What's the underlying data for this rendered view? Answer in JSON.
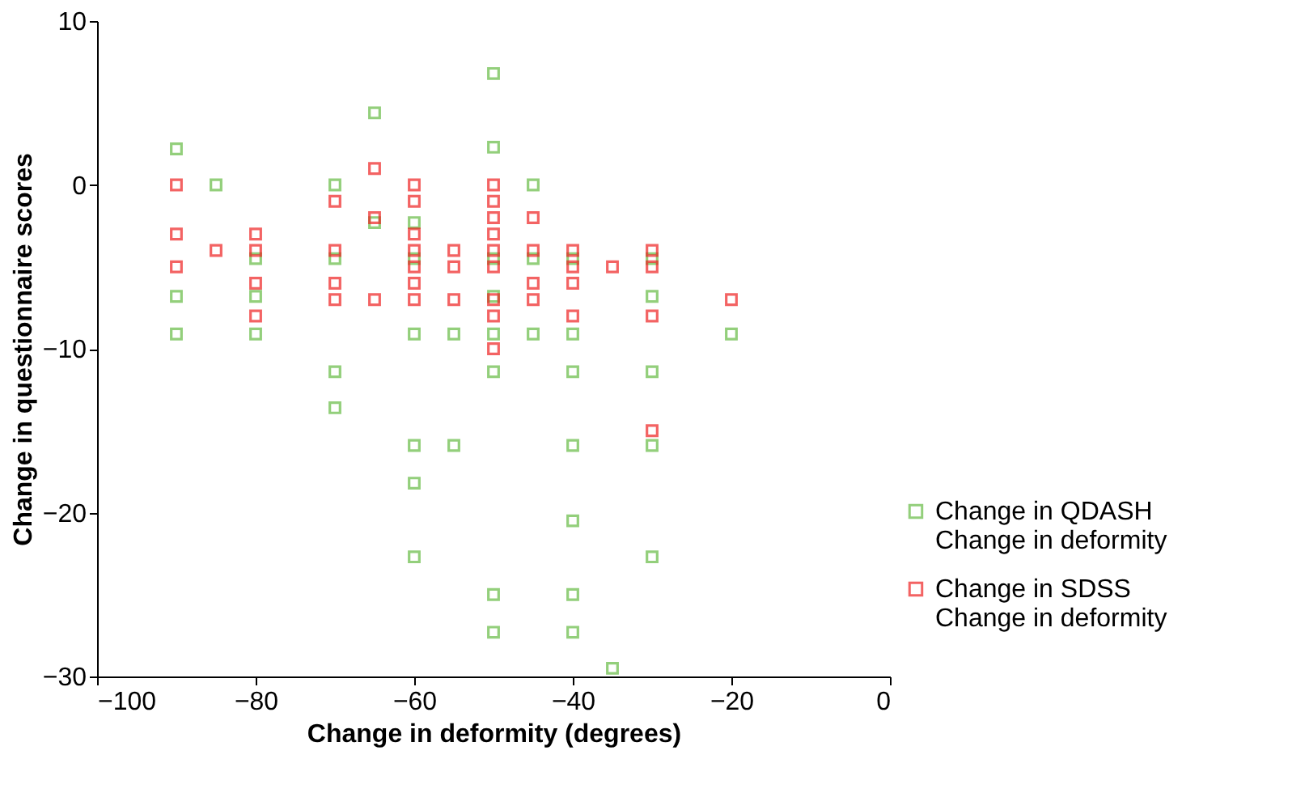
{
  "chart_data": {
    "type": "scatter",
    "xlabel": "Change in deformity (degrees)",
    "ylabel": "Change in questionnaire scores",
    "xlim": [
      -100,
      0
    ],
    "xticks": [
      -100,
      -80,
      -60,
      -40,
      -20,
      0
    ],
    "ylim": [
      -30,
      10
    ],
    "yticks": [
      -30,
      -20,
      -10,
      0,
      10
    ],
    "grid": false,
    "legend": "bottom right",
    "marker": "square",
    "series": [
      {
        "name": "Change in QDASH\nChange in deformity",
        "color": "#66bb44",
        "x": [
          -90,
          -90,
          -90,
          -85,
          -80,
          -80,
          -80,
          -70,
          -70,
          -70,
          -70,
          -65,
          -65,
          -60,
          -60,
          -60,
          -60,
          -60,
          -60,
          -55,
          -55,
          -50,
          -50,
          -50,
          -50,
          -50,
          -50,
          -50,
          -50,
          -45,
          -45,
          -45,
          -40,
          -40,
          -40,
          -40,
          -40,
          -40,
          -40,
          -35,
          -30,
          -30,
          -30,
          -30,
          -30,
          -20
        ],
        "values": [
          2.2,
          -6.8,
          -9.1,
          0,
          -4.5,
          -6.8,
          -9.1,
          0,
          -4.5,
          -11.4,
          -13.6,
          4.4,
          -2.3,
          -2.3,
          -4.5,
          -9.1,
          -15.9,
          -18.2,
          -22.7,
          -9.1,
          -15.9,
          6.8,
          2.3,
          -4.5,
          -6.8,
          -9.1,
          -11.4,
          -25,
          -27.3,
          0,
          -4.5,
          -9.1,
          -4.5,
          -9.1,
          -11.4,
          -15.9,
          -20.5,
          -25,
          -27.3,
          -29.5,
          -4.5,
          -6.8,
          -11.4,
          -15.9,
          -22.7,
          -9.1
        ]
      },
      {
        "name": "Change in SDSS\nChange in deformity",
        "color": "#ee2222",
        "x": [
          -90,
          -90,
          -90,
          -85,
          -80,
          -80,
          -80,
          -80,
          -70,
          -70,
          -70,
          -70,
          -65,
          -65,
          -65,
          -60,
          -60,
          -60,
          -60,
          -60,
          -60,
          -60,
          -55,
          -55,
          -55,
          -50,
          -50,
          -50,
          -50,
          -50,
          -50,
          -50,
          -50,
          -50,
          -45,
          -45,
          -45,
          -45,
          -40,
          -40,
          -40,
          -40,
          -35,
          -30,
          -30,
          -30,
          -30,
          -20
        ],
        "values": [
          0,
          -3,
          -5,
          -4,
          -3,
          -4,
          -6,
          -8,
          -1,
          -4,
          -6,
          -7,
          1,
          -2,
          -7,
          0,
          -1,
          -3,
          -4,
          -5,
          -6,
          -7,
          -4,
          -5,
          -7,
          0,
          -1,
          -2,
          -3,
          -4,
          -5,
          -7,
          -8,
          -10,
          -2,
          -4,
          -6,
          -7,
          -4,
          -5,
          -6,
          -8,
          -5,
          -4,
          -5,
          -8,
          -15,
          -7
        ]
      }
    ]
  }
}
